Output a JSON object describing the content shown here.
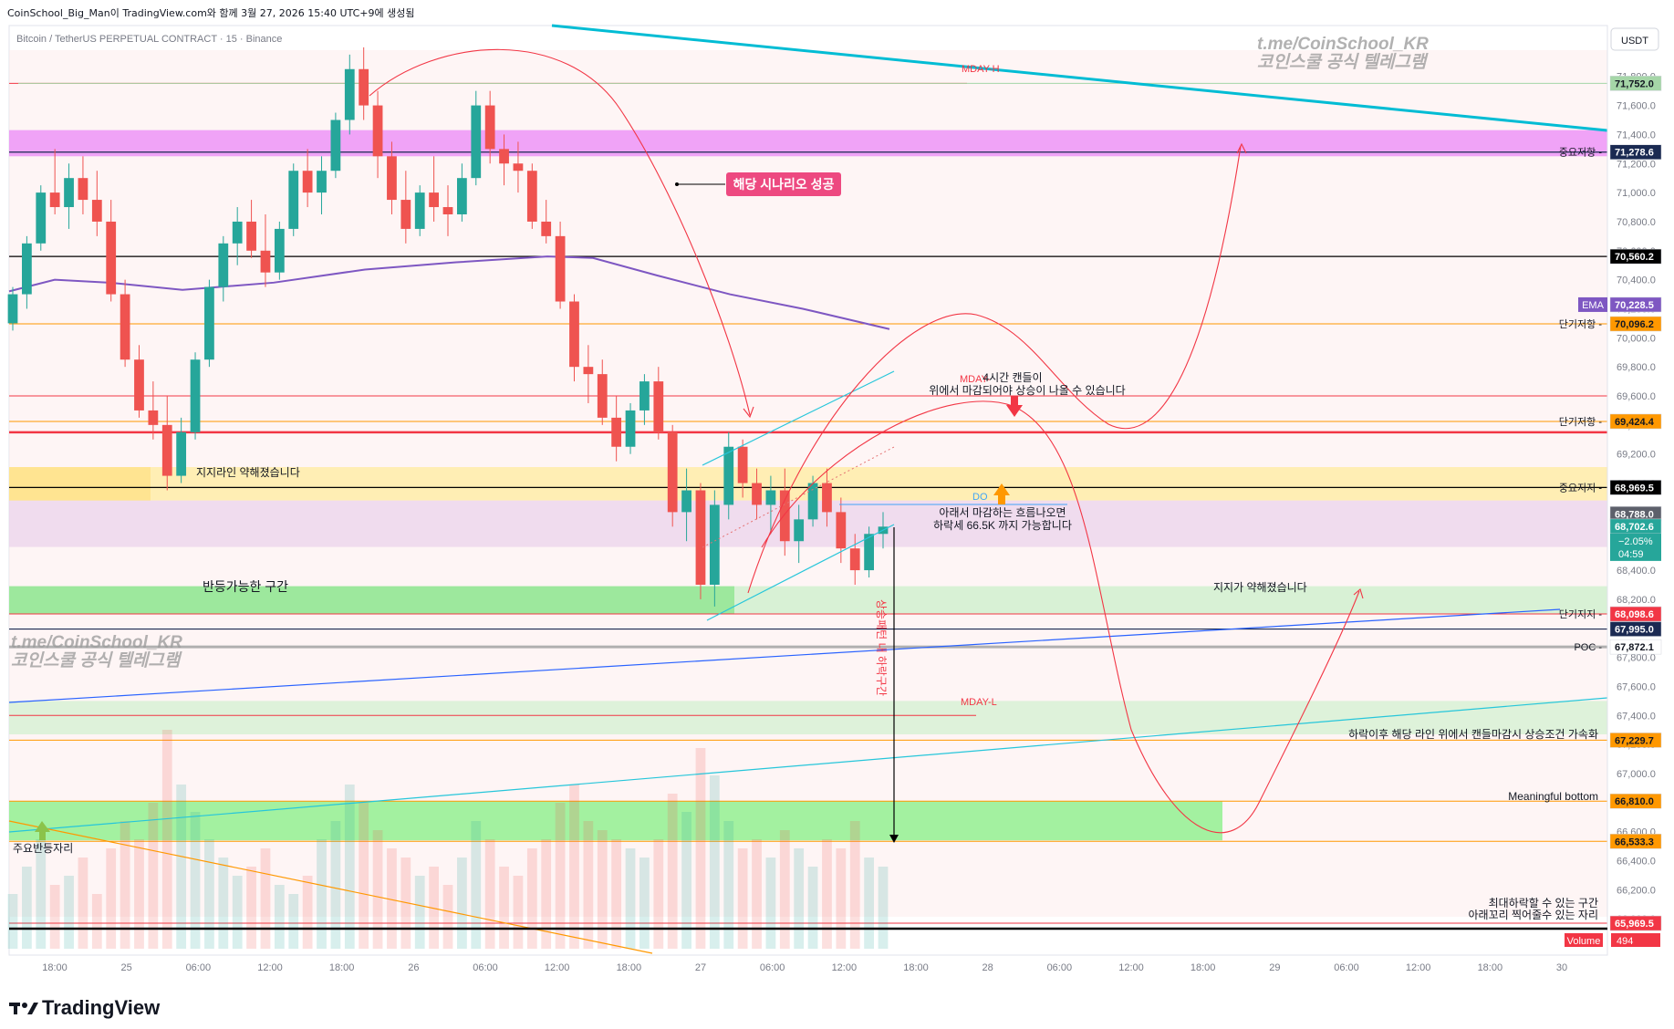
{
  "header": {
    "caption": "CoinSchool_Big_Man이 TradingView.com와 함께 3월 27, 2026 15:40 UTC+9에 생성됨"
  },
  "symbol_line": "Bitcoin / TetherUS PERPETUAL CONTRACT · 15 · Binance",
  "currency_button": "USDT",
  "watermark": {
    "handle": "t.me/CoinSchool_KR",
    "subtitle": "코인스쿨 공식 텔레그램"
  },
  "logo_text": "TradingView",
  "colors": {
    "up_candle": "#26a69a",
    "down_candle": "#ef5350",
    "ema": "#7e57c2",
    "cyan_trend": "#00bcd4",
    "red_level": "#f23645",
    "orange_level": "#ff9800"
  },
  "chart_data": {
    "type": "candlestick",
    "price_axis": {
      "ylim": [
        65750,
        72150
      ],
      "ticks": [
        "71,800.0",
        "71,600.0",
        "71,400.0",
        "71,200.0",
        "71,000.0",
        "70,800.0",
        "70,600.0",
        "70,400.0",
        "70,200.0",
        "70,000.0",
        "69,800.0",
        "69,600.0",
        "69,400.0",
        "69,200.0",
        "69,000.0",
        "68,800.0",
        "68,600.0",
        "68,400.0",
        "68,200.0",
        "68,000.0",
        "67,800.0",
        "67,600.0",
        "67,400.0",
        "67,200.0",
        "67,000.0",
        "66,800.0",
        "66,600.0",
        "66,400.0",
        "66,200.0",
        "66,000.0"
      ]
    },
    "time_axis": {
      "labels": [
        "18:00",
        "25",
        "06:00",
        "12:00",
        "18:00",
        "26",
        "06:00",
        "12:00",
        "18:00",
        "27",
        "06:00",
        "12:00",
        "18:00",
        "28",
        "06:00",
        "12:00",
        "18:00",
        "29",
        "06:00",
        "12:00",
        "18:00",
        "30"
      ]
    },
    "price_labels": [
      {
        "value": "71,752.0",
        "color": "#a5d6a7",
        "text_color": "#131722"
      },
      {
        "value": "71,278.6",
        "color": "#1a2a52",
        "text_color": "#ffffff",
        "tag": "중요저항"
      },
      {
        "value": "70,560.2",
        "color": "#000000",
        "text_color": "#ffffff"
      },
      {
        "value": "70,228.5",
        "color": "#7e57c2",
        "text_color": "#ffffff",
        "tag": "EMA"
      },
      {
        "value": "70,096.2",
        "color": "#ff9800",
        "text_color": "#131722",
        "tag": "단기저항"
      },
      {
        "value": "69,424.4",
        "color": "#ff9800",
        "text_color": "#131722",
        "tag": "단기저항"
      },
      {
        "value": "68,969.5",
        "color": "#000000",
        "text_color": "#ffffff",
        "tag": "중요지지"
      },
      {
        "value": "68,788.0",
        "color": "#5d606b",
        "text_color": "#ffffff"
      },
      {
        "value": "68,702.6",
        "color": "#26a69a",
        "text_color": "#ffffff"
      },
      {
        "value": "68,098.6",
        "color": "#f23645",
        "text_color": "#ffffff",
        "tag": "단기지지"
      },
      {
        "value": "67,995.0",
        "color": "#1a2a52",
        "text_color": "#ffffff"
      },
      {
        "value": "67,872.1",
        "color": "#ffffff",
        "text_color": "#131722",
        "tag": "POC"
      },
      {
        "value": "67,229.7",
        "color": "#ff9800",
        "text_color": "#131722"
      },
      {
        "value": "66,810.0",
        "color": "#ff9800",
        "text_color": "#131722"
      },
      {
        "value": "66,533.3",
        "color": "#ff9800",
        "text_color": "#131722"
      },
      {
        "value": "65,969.5",
        "color": "#f23645",
        "text_color": "#ffffff"
      }
    ],
    "current_price": {
      "change": "−2.05%",
      "countdown": "04:59"
    },
    "volume_label": {
      "name": "Volume",
      "value": "494"
    },
    "ema_level": 70228.5,
    "zones": [
      {
        "from": 71250,
        "to": 71430,
        "color": "#e040fb",
        "opacity": 0.45
      },
      {
        "from": 68880,
        "to": 69110,
        "color": "#ffeb99",
        "opacity": 0.7
      },
      {
        "from": 68560,
        "to": 68880,
        "color": "#e1bee7",
        "opacity": 0.45
      },
      {
        "from": 68100,
        "to": 68290,
        "color": "#c8f0c8",
        "opacity": 0.7
      },
      {
        "from": 67270,
        "to": 67500,
        "color": "#c8f0c8",
        "opacity": 0.6
      },
      {
        "from": 66540,
        "to": 66810,
        "color": "#7cf07c",
        "opacity": 0.7
      }
    ],
    "levels": [
      {
        "value": 71278.6,
        "color": "#1a2a52",
        "width": 1.2
      },
      {
        "value": 70560.2,
        "color": "#000000",
        "width": 1.2
      },
      {
        "value": 70096.2,
        "color": "#ff9800",
        "width": 1
      },
      {
        "value": 69600.0,
        "color": "#f23645",
        "width": 1
      },
      {
        "value": 69424.4,
        "color": "#ff9800",
        "width": 1
      },
      {
        "value": 69350.0,
        "color": "#f23645",
        "width": 2.5
      },
      {
        "value": 68969.5,
        "color": "#000000",
        "width": 1.2
      },
      {
        "value": 68098.6,
        "color": "#f23645",
        "width": 1
      },
      {
        "value": 67995.0,
        "color": "#1a2a52",
        "width": 1.2
      },
      {
        "value": 67872.1,
        "color": "#b0b0b0",
        "width": 3
      },
      {
        "value": 67229.7,
        "color": "#ff9800",
        "width": 1
      },
      {
        "value": 66810.0,
        "color": "#ff9800",
        "width": 1
      },
      {
        "value": 66533.3,
        "color": "#ff9800",
        "width": 1
      },
      {
        "value": 65969.5,
        "color": "#f23645",
        "width": 1
      }
    ],
    "annotations": {
      "scenario_success": "해당 시나리오 성공",
      "support_weakened_top": "지지라인 약해졌습니다",
      "rebound_zone": "반등가능한 구간",
      "support_weakened_right": "지지가 약해졌습니다",
      "mday_h": "MDAY-H",
      "mday_mid": "MDAY-",
      "mday_l": "MDAY-L",
      "candle_4h_line1": "4시간 캔들이",
      "candle_4h_line2": "위에서 마감되어야 상승이 나올 수 있습니다",
      "do_label": "DO",
      "close_below_line1": "아래서 마감하는 흐름나오면",
      "close_below_line2": "하락세 66.5K 까지 가능합니다",
      "after_drop": "하락이후 해당 라인 위에서 캔들마감시 상승조건 가속화",
      "meaningful_bottom": "Meaningful bottom",
      "main_rebound": "주요반등자리",
      "max_drop_line1": "최대하락할 수 있는 구간",
      "max_drop_line2": "아래꼬리 찍어줄수 있는 자리",
      "vertical_note": "상승패턴 내 하락구간"
    },
    "candles": [
      [
        70100,
        70350,
        70050,
        70300
      ],
      [
        70300,
        70700,
        70200,
        70650
      ],
      [
        70650,
        71050,
        70600,
        71000
      ],
      [
        71000,
        71300,
        70850,
        70900
      ],
      [
        70900,
        71200,
        70750,
        71100
      ],
      [
        71100,
        71250,
        70850,
        70950
      ],
      [
        70950,
        71150,
        70700,
        70800
      ],
      [
        70800,
        70950,
        70250,
        70300
      ],
      [
        70300,
        70400,
        69800,
        69850
      ],
      [
        69850,
        69950,
        69450,
        69500
      ],
      [
        69500,
        69700,
        69300,
        69400
      ],
      [
        69400,
        69600,
        68950,
        69050
      ],
      [
        69050,
        69450,
        69000,
        69350
      ],
      [
        69350,
        69900,
        69300,
        69850
      ],
      [
        69850,
        70400,
        69800,
        70350
      ],
      [
        70350,
        70700,
        70250,
        70650
      ],
      [
        70650,
        70900,
        70500,
        70800
      ],
      [
        70800,
        70950,
        70550,
        70600
      ],
      [
        70600,
        70850,
        70350,
        70450
      ],
      [
        70450,
        70800,
        70400,
        70750
      ],
      [
        70750,
        71200,
        70700,
        71150
      ],
      [
        71150,
        71300,
        70900,
        71000
      ],
      [
        71000,
        71250,
        70850,
        71150
      ],
      [
        71150,
        71550,
        71100,
        71500
      ],
      [
        71500,
        71950,
        71400,
        71850
      ],
      [
        71850,
        72000,
        71500,
        71600
      ],
      [
        71600,
        71700,
        71100,
        71250
      ],
      [
        71250,
        71350,
        70850,
        70950
      ],
      [
        70950,
        71150,
        70650,
        70750
      ],
      [
        70750,
        71050,
        70700,
        71000
      ],
      [
        71000,
        71250,
        70800,
        70900
      ],
      [
        70900,
        71050,
        70700,
        70850
      ],
      [
        70850,
        71200,
        70800,
        71100
      ],
      [
        71100,
        71700,
        71050,
        71600
      ],
      [
        71600,
        71700,
        71200,
        71300
      ],
      [
        71300,
        71400,
        71050,
        71200
      ],
      [
        71200,
        71350,
        71000,
        71150
      ],
      [
        71150,
        71200,
        70750,
        70800
      ],
      [
        70800,
        70950,
        70650,
        70700
      ],
      [
        70700,
        70800,
        70200,
        70250
      ],
      [
        70250,
        70300,
        69700,
        69800
      ],
      [
        69800,
        69950,
        69550,
        69750
      ],
      [
        69750,
        69850,
        69400,
        69450
      ],
      [
        69450,
        69600,
        69150,
        69250
      ],
      [
        69250,
        69550,
        69200,
        69500
      ],
      [
        69500,
        69750,
        69400,
        69700
      ],
      [
        69700,
        69800,
        69300,
        69350
      ],
      [
        69350,
        69400,
        68700,
        68800
      ],
      [
        68800,
        69100,
        68600,
        68950
      ],
      [
        68950,
        69000,
        68200,
        68300
      ],
      [
        68300,
        68950,
        68150,
        68850
      ],
      [
        68850,
        69350,
        68750,
        69250
      ],
      [
        69250,
        69300,
        68900,
        69000
      ],
      [
        69000,
        69100,
        68750,
        68850
      ],
      [
        68850,
        69050,
        68650,
        68950
      ],
      [
        68950,
        69100,
        68500,
        68600
      ],
      [
        68600,
        68850,
        68450,
        68750
      ],
      [
        68750,
        69050,
        68700,
        69000
      ],
      [
        69000,
        69100,
        68700,
        68800
      ],
      [
        68800,
        68900,
        68450,
        68550
      ],
      [
        68550,
        68650,
        68300,
        68400
      ],
      [
        68400,
        68700,
        68350,
        68650
      ],
      [
        68650,
        68800,
        68550,
        68700
      ]
    ],
    "volumes": [
      30,
      45,
      60,
      35,
      40,
      50,
      30,
      55,
      70,
      60,
      80,
      120,
      90,
      75,
      60,
      50,
      40,
      45,
      55,
      35,
      30,
      40,
      60,
      70,
      90,
      80,
      65,
      55,
      50,
      40,
      45,
      35,
      50,
      70,
      60,
      45,
      40,
      55,
      60,
      80,
      90,
      70,
      65,
      60,
      55,
      50,
      60,
      85,
      75,
      110,
      95,
      70,
      55,
      60,
      50,
      65,
      55,
      45,
      60,
      55,
      70,
      50,
      45
    ]
  }
}
